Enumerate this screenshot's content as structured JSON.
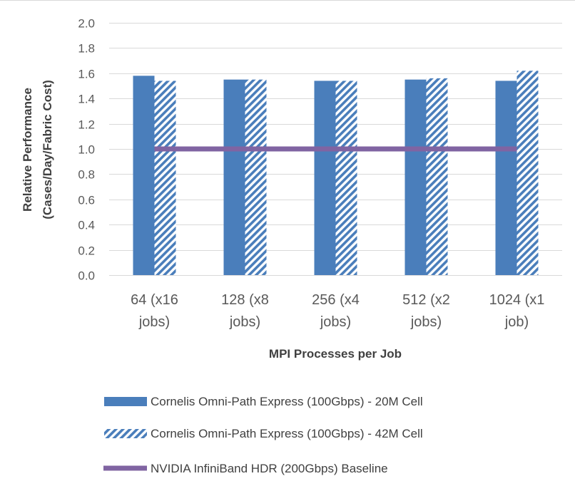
{
  "chart_data": {
    "type": "bar",
    "categories": [
      [
        "64 (x16",
        "jobs)"
      ],
      [
        "128 (x8",
        "jobs)"
      ],
      [
        "256 (x4",
        "jobs)"
      ],
      [
        "512 (x2",
        "jobs)"
      ],
      [
        "1024 (x1",
        "job)"
      ]
    ],
    "series": [
      {
        "name": "Cornelis Omni-Path Express (100Gbps) - 20M Cell",
        "style": "solid",
        "color": "#4a7ebb",
        "values": [
          1.58,
          1.55,
          1.54,
          1.55,
          1.54
        ]
      },
      {
        "name": "Cornelis Omni-Path Express (100Gbps) - 42M Cell",
        "style": "hatched",
        "color": "#4a7ebb",
        "values": [
          1.54,
          1.55,
          1.54,
          1.56,
          1.62
        ]
      },
      {
        "name": "NVIDIA InfiniBand HDR (200Gbps) Baseline",
        "style": "line",
        "color": "#8064a2",
        "values": [
          1.0,
          1.0,
          1.0,
          1.0,
          1.0
        ]
      }
    ],
    "xlabel": "MPI Processes per Job",
    "ylabel": [
      "Relative Performance",
      "(Cases/Day/Fabric Cost)"
    ],
    "ylim": [
      0,
      2.0
    ],
    "ytick_step": 0.2,
    "ytick_labels": [
      "0.0",
      "0.2",
      "0.4",
      "0.6",
      "0.8",
      "1.0",
      "1.2",
      "1.4",
      "1.6",
      "1.8",
      "2.0"
    ],
    "grid": true,
    "legend_position": "bottom"
  }
}
